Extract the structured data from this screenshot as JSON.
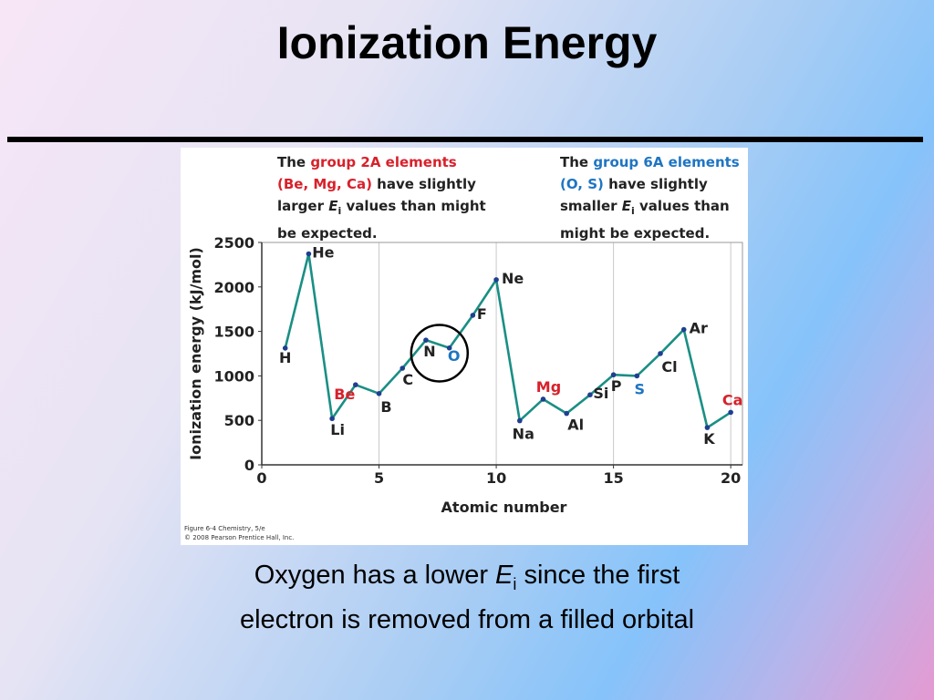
{
  "slide": {
    "title": "Ionization Energy",
    "caption": {
      "prefix": "Oxygen has a lower ",
      "symbol": "E",
      "subscript": "i",
      "suffix": " since the first",
      "line2": "electron is removed from a filled orbital"
    }
  },
  "figure": {
    "note_left": {
      "a": "The ",
      "b": "group 2A elements",
      "c": "(Be, Mg, Ca)",
      "d": " have slightly",
      "e": "larger ",
      "f": "E",
      "g": "i",
      "h": " values than might",
      "i": "be expected."
    },
    "note_right": {
      "a": "The ",
      "b": "group 6A elements",
      "c": "(O, S)",
      "d": " have slightly",
      "e": "smaller ",
      "f": "E",
      "g": "i",
      "h": " values than",
      "i": "might be expected."
    },
    "credit_line1": "Figure 6-4  Chemistry, 5/e",
    "credit_line2": "© 2008 Pearson Prentice Hall, Inc."
  },
  "chart_data": {
    "type": "line",
    "xlabel": "Atomic number",
    "ylabel": "Ionization energy (kJ/mol)",
    "xlim": [
      0,
      20.5
    ],
    "ylim": [
      0,
      2500
    ],
    "x_ticks": [
      0,
      5,
      10,
      15,
      20
    ],
    "y_ticks": [
      0,
      500,
      1000,
      1500,
      2000,
      2500
    ],
    "grid": "vertical",
    "series": [
      {
        "color": "#1a8f84",
        "points": [
          {
            "x": 1,
            "y": 1312,
            "label": "H"
          },
          {
            "x": 2,
            "y": 2372,
            "label": "He"
          },
          {
            "x": 3,
            "y": 520,
            "label": "Li"
          },
          {
            "x": 4,
            "y": 900,
            "label": "Be"
          },
          {
            "x": 5,
            "y": 801,
            "label": "B"
          },
          {
            "x": 6,
            "y": 1086,
            "label": "C"
          },
          {
            "x": 7,
            "y": 1402,
            "label": "N"
          },
          {
            "x": 8,
            "y": 1314,
            "label": "O"
          },
          {
            "x": 9,
            "y": 1681,
            "label": "F"
          },
          {
            "x": 10,
            "y": 2081,
            "label": "Ne"
          },
          {
            "x": 11,
            "y": 496,
            "label": "Na"
          },
          {
            "x": 12,
            "y": 738,
            "label": "Mg"
          },
          {
            "x": 13,
            "y": 578,
            "label": "Al"
          },
          {
            "x": 14,
            "y": 787,
            "label": "Si"
          },
          {
            "x": 15,
            "y": 1012,
            "label": "P"
          },
          {
            "x": 16,
            "y": 1000,
            "label": "S"
          },
          {
            "x": 17,
            "y": 1251,
            "label": "Cl"
          },
          {
            "x": 18,
            "y": 1521,
            "label": "Ar"
          },
          {
            "x": 19,
            "y": 419,
            "label": "K"
          },
          {
            "x": 20,
            "y": 590,
            "label": "Ca"
          }
        ]
      }
    ],
    "highlight": {
      "group_2A": [
        "Be",
        "Mg",
        "Ca"
      ],
      "group_6A": [
        "O",
        "S"
      ],
      "circled": [
        "N",
        "O"
      ]
    },
    "colors": {
      "line": "#1a8f84",
      "marker": "#1f3f8f",
      "group_2A": "#d8212b",
      "group_6A": "#1e75c3",
      "default_label": "#222222"
    }
  }
}
